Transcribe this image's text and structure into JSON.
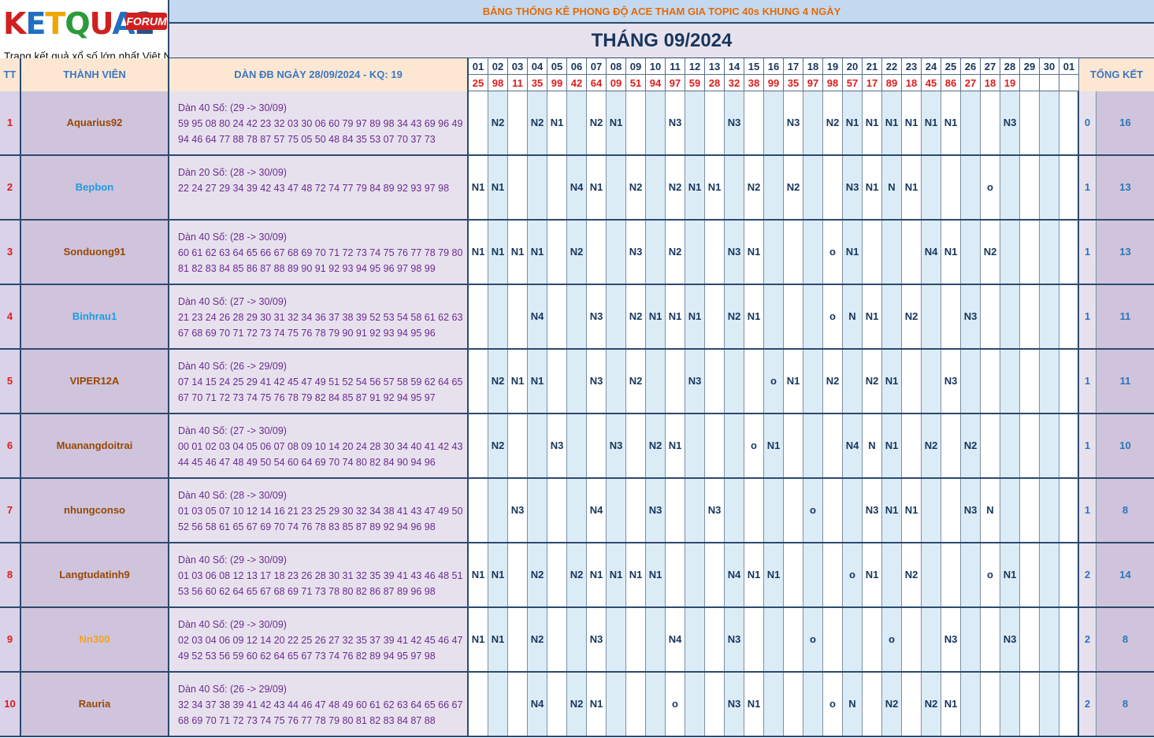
{
  "logo": {
    "wordmark": "KETQUA2",
    "badge": "FORUM",
    "tagline": "Trang kết quả xổ số lớn nhất Việt Nam"
  },
  "title": "BẢNG THỐNG KÊ PHONG ĐỘ ACE THAM GIA TOPIC 40s KHUNG 4 NGÀY",
  "month": "THÁNG 09/2024",
  "headers": {
    "tt": "TT",
    "member": "THÀNH VIÊN",
    "dan": "DÀN ĐB NGÀY 28/09/2024 - KQ: 19",
    "summary": "TỔNG KẾT"
  },
  "days": [
    "01",
    "02",
    "03",
    "04",
    "05",
    "06",
    "07",
    "08",
    "09",
    "10",
    "11",
    "12",
    "13",
    "14",
    "15",
    "16",
    "17",
    "18",
    "19",
    "20",
    "21",
    "22",
    "23",
    "24",
    "25",
    "26",
    "27",
    "28",
    "29",
    "30",
    "01"
  ],
  "results": [
    "25",
    "98",
    "11",
    "35",
    "99",
    "42",
    "64",
    "09",
    "51",
    "94",
    "97",
    "59",
    "28",
    "32",
    "38",
    "99",
    "35",
    "97",
    "98",
    "57",
    "17",
    "89",
    "18",
    "45",
    "86",
    "27",
    "18",
    "19",
    "",
    "",
    ""
  ],
  "colors": {
    "name_brown": "#984806",
    "name_blue": "#1f9be0",
    "name_orange": "#f4a21c",
    "column_blue": "#dcecf6",
    "column_white": "#ffffff"
  },
  "rows": [
    {
      "tt": "1",
      "name": "Aquarius92",
      "name_color": "#984806",
      "dan_title": "Dàn 40 Số: (29 -> 30/09)",
      "dan_line1": "59 95 08 80 24 42 23 32 03 30 06 60 79 97 89 98 34 43 69 96 49",
      "dan_line2": "94 46 64 77 88 78 87 57 75 05 50 48 84 35 53 07 70 37 73",
      "cells": [
        "",
        "N2",
        "",
        "N2",
        "N1",
        "",
        "N2",
        "N1",
        "",
        "",
        "N3",
        "",
        "",
        "N3",
        "",
        "",
        "N3",
        "",
        "N2",
        "N1",
        "N1",
        "N1",
        "N1",
        "N1",
        "N1",
        "",
        "",
        "N3",
        "",
        "",
        ""
      ],
      "win": "0",
      "total": "16"
    },
    {
      "tt": "2",
      "name": "Bepbon",
      "name_color": "#1f9be0",
      "dan_title": "Dàn 20 Số: (28 -> 30/09)",
      "dan_line1": "22 24 27 29 34 39 42 43 47 48 72 74 77 79 84 89 92 93 97 98",
      "dan_line2": "",
      "cells": [
        "N1",
        "N1",
        "",
        "",
        "",
        "N4",
        "N1",
        "",
        "N2",
        "",
        "N2",
        "N1",
        "N1",
        "",
        "N2",
        "",
        "N2",
        "",
        "",
        "N3",
        "N1",
        "N",
        "N1",
        "",
        "",
        "",
        "o",
        "",
        "",
        "",
        ""
      ],
      "win": "1",
      "total": "13"
    },
    {
      "tt": "3",
      "name": "Sonduong91",
      "name_color": "#984806",
      "dan_title": "Dàn 40 Số: (28 -> 30/09)",
      "dan_line1": "60 61 62 63 64 65 66 67 68 69 70 71 72 73 74 75 76 77 78 79 80",
      "dan_line2": "81 82 83 84 85 86 87 88 89 90 91 92 93 94 95 96 97 98 99",
      "cells": [
        "N1",
        "N1",
        "N1",
        "N1",
        "",
        "N2",
        "",
        "",
        "N3",
        "",
        "N2",
        "",
        "",
        "N3",
        "N1",
        "",
        "",
        "",
        "o",
        "N1",
        "",
        "",
        "",
        "N4",
        "N1",
        "",
        "N2",
        "",
        "",
        "",
        ""
      ],
      "win": "1",
      "total": "13"
    },
    {
      "tt": "4",
      "name": "Binhrau1",
      "name_color": "#1f9be0",
      "dan_title": "Dàn 40 Số: (27 -> 30/09)",
      "dan_line1": "21 23 24 26 28 29 30 31 32 34 36 37 38 39 52 53 54 58 61 62 63",
      "dan_line2": "67 68 69 70 71 72 73 74 75 76 78 79 90 91 92 93 94 95 96",
      "cells": [
        "",
        "",
        "",
        "N4",
        "",
        "",
        "N3",
        "",
        "N2",
        "N1",
        "N1",
        "N1",
        "",
        "N2",
        "N1",
        "",
        "",
        "",
        "o",
        "N",
        "N1",
        "",
        "N2",
        "",
        "",
        "N3",
        "",
        "",
        "",
        "",
        ""
      ],
      "win": "1",
      "total": "11"
    },
    {
      "tt": "5",
      "name": "VIPER12A",
      "name_color": "#984806",
      "dan_title": "Dàn 40 Số: (26 -> 29/09)",
      "dan_line1": "07 14 15 24 25 29 41 42 45 47 49 51 52 54 56 57 58 59 62 64 65",
      "dan_line2": "67 70 71 72 73 74 75 76 78 79 82 84 85 87 91 92 94 95 97",
      "cells": [
        "",
        "N2",
        "N1",
        "N1",
        "",
        "",
        "N3",
        "",
        "N2",
        "",
        "",
        "N3",
        "",
        "",
        "",
        "o",
        "N1",
        "",
        "N2",
        "",
        "N2",
        "N1",
        "",
        "",
        "N3",
        "",
        "",
        "",
        "",
        "",
        ""
      ],
      "win": "1",
      "total": "11"
    },
    {
      "tt": "6",
      "name": "Muanangdoitrai",
      "name_color": "#984806",
      "dan_title": "Dàn 40 Số: (27 -> 30/09)",
      "dan_line1": "00 01 02 03 04 05 06 07 08 09 10 14 20 24 28 30 34 40 41 42 43",
      "dan_line2": "44 45 46 47 48 49 50 54 60 64 69 70 74 80 82 84 90 94 96",
      "cells": [
        "",
        "N2",
        "",
        "",
        "N3",
        "",
        "",
        "N3",
        "",
        "N2",
        "N1",
        "",
        "",
        "",
        "o",
        "N1",
        "",
        "",
        "",
        "N4",
        "N",
        "N1",
        "",
        "N2",
        "",
        "N2",
        "",
        "",
        "",
        "",
        ""
      ],
      "win": "1",
      "total": "10"
    },
    {
      "tt": "7",
      "name": "nhungconso",
      "name_color": "#984806",
      "dan_title": "Dàn 40 Số: (28 -> 30/09)",
      "dan_line1": "01 03 05 07 10 12 14 16 21 23 25 29 30 32 34 38 41 43 47 49 50",
      "dan_line2": "52 56 58 61 65 67 69 70 74 76 78 83 85 87 89 92 94 96 98",
      "cells": [
        "",
        "",
        "N3",
        "",
        "",
        "",
        "N4",
        "",
        "",
        "N3",
        "",
        "",
        "N3",
        "",
        "",
        "",
        "",
        "o",
        "",
        "",
        "N3",
        "N1",
        "N1",
        "",
        "",
        "N3",
        "N",
        "",
        "",
        "",
        ""
      ],
      "win": "1",
      "total": "8"
    },
    {
      "tt": "8",
      "name": "Langtudatinh9",
      "name_color": "#984806",
      "dan_title": "Dàn 40 Số: (29 -> 30/09)",
      "dan_line1": "01 03 06 08 12 13 17 18 23 26 28 30 31 32 35 39 41 43 46 48 51",
      "dan_line2": "53 56 60 62 64 65 67 68 69 71 73 78 80 82 86 87 89 96 98",
      "cells": [
        "N1",
        "N1",
        "",
        "N2",
        "",
        "N2",
        "N1",
        "N1",
        "N1",
        "N1",
        "",
        "",
        "",
        "N4",
        "N1",
        "N1",
        "",
        "",
        "",
        "o",
        "N1",
        "",
        "N2",
        "",
        "",
        "",
        "o",
        "N1",
        "",
        "",
        ""
      ],
      "win": "2",
      "total": "14"
    },
    {
      "tt": "9",
      "name": "Nn300",
      "name_color": "#f4a21c",
      "dan_title": "Dàn 40 Số: (29 -> 30/09)",
      "dan_line1": "02 03 04 06 09 12 14 20 22 25 26 27 32 35 37 39 41 42 45 46 47",
      "dan_line2": "49 52 53 56 59 60 62 64 65 67 73 74 76 82 89 94 95 97 98",
      "cells": [
        "N1",
        "N1",
        "",
        "N2",
        "",
        "",
        "N3",
        "",
        "",
        "",
        "N4",
        "",
        "",
        "N3",
        "",
        "",
        "",
        "o",
        "",
        "",
        "",
        "o",
        "",
        "",
        "N3",
        "",
        "",
        "N3",
        "",
        "",
        ""
      ],
      "win": "2",
      "total": "8"
    },
    {
      "tt": "10",
      "name": "Rauria",
      "name_color": "#984806",
      "dan_title": "Dàn 40 Số: (26 -> 29/09)",
      "dan_line1": "32 34 37 38 39 41 42 43 44 46 47 48 49 60 61 62 63 64 65 66 67",
      "dan_line2": "68 69 70 71 72 73 74 75 76 77 78 79 80 81 82 83 84 87 88",
      "cells": [
        "",
        "",
        "",
        "N4",
        "",
        "N2",
        "N1",
        "",
        "",
        "",
        "o",
        "",
        "",
        "N3",
        "N1",
        "",
        "",
        "",
        "o",
        "N",
        "",
        "N2",
        "",
        "N2",
        "N1",
        "",
        "",
        "",
        "",
        "",
        ""
      ],
      "win": "2",
      "total": "8"
    }
  ]
}
